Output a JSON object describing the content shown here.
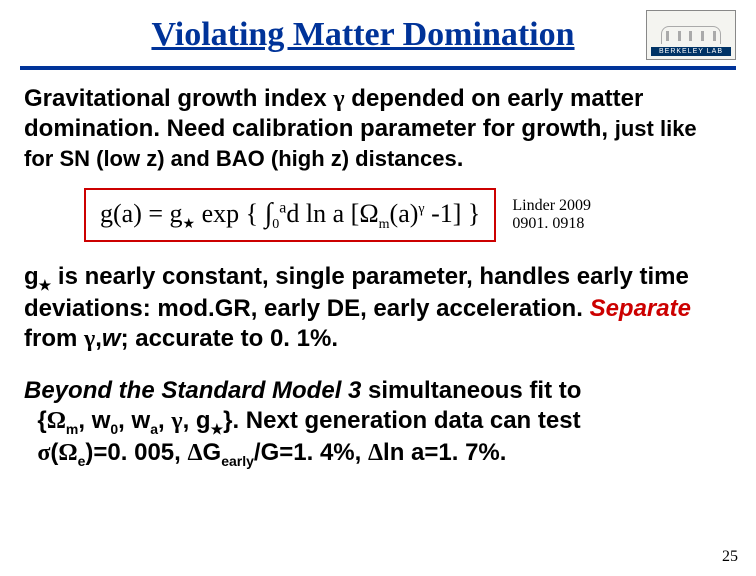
{
  "title": "Violating Matter Domination",
  "logo_label": "BERKELEY LAB",
  "colors": {
    "title_color": "#003399",
    "rule_color": "#003399",
    "formula_border": "#cc0000",
    "red_text": "#cc0000",
    "background": "#ffffff"
  },
  "para1_a": "Gravitational growth index ",
  "para1_gamma": "γ",
  "para1_b": " depended on early matter domination.  Need calibration parameter for growth,",
  "para1_c": " just like for SN (low z) and BAO (high z) distances",
  "para1_dot": ".",
  "formula": {
    "lhs": "g(a) = g",
    "star": "★",
    "exp": " exp { ",
    "int": "∫",
    "low": "0",
    "up": "a",
    "mid": "d ln a [",
    "Omega": "Ω",
    "msub": "m",
    "arg": "(a)",
    "gamma_sup": "γ",
    "tail": " -1] }"
  },
  "citation_l1": "Linder 2009",
  "citation_l2": "0901. 0918",
  "para2_a": "g",
  "para2_star": "★",
  "para2_b": " is nearly constant, single parameter, handles early time deviations: mod.GR, early DE, early acceleration.",
  "para2_sep_label": "Separate",
  "para2_c": " from ",
  "para2_gamma": "γ",
  "para2_comma": ",",
  "para2_w": "w",
  "para2_d": "; accurate to 0. 1%.",
  "para3_a": "Beyond the Standard Model 3",
  "para3_b": " simultaneous fit to",
  "para3_set_open": "{",
  "para3_Om": "Ω",
  "para3_m": "m",
  "para3_c1": ", w",
  "para3_0": "0",
  "para3_c2": ", w",
  "para3_asub": "a",
  "para3_c3": ", ",
  "para3_gamma2": "γ",
  "para3_c4": ", g",
  "para3_star2": "★",
  "para3_set_close": "}.",
  "para3_d": "  Next generation data can test",
  "para3_sigma": "σ",
  "para3_paren_open": "(",
  "para3_Oe": "Ω",
  "para3_esub": "e",
  "para3_e": ")=0. 005, ",
  "para3_D1": "Δ",
  "para3_G": "G",
  "para3_early": "early",
  "para3_f": "/G=1. 4%, ",
  "para3_D2": "Δ",
  "para3_g": "ln a=1. 7%.",
  "page_number": "25"
}
